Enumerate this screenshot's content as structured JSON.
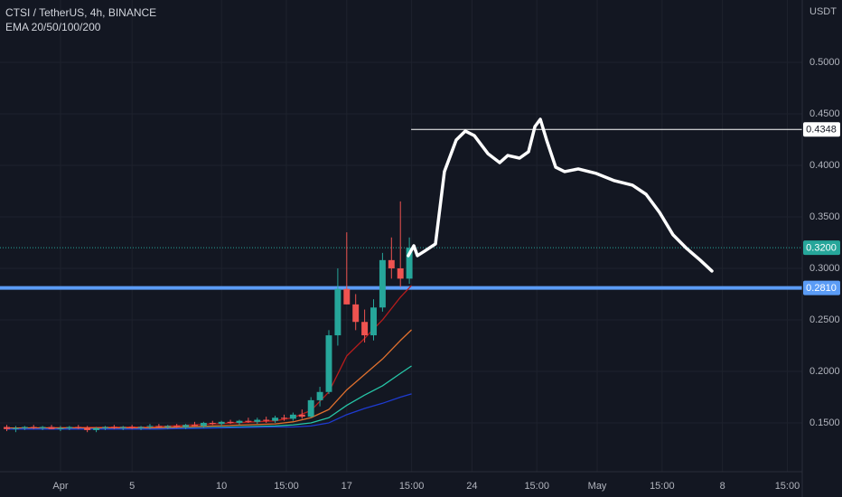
{
  "chart_data": {
    "type": "candlestick",
    "title": "CTSI / TetherUS, 4h, BINANCE",
    "subtitle": "EMA 20/50/100/200",
    "y_axis_label": "USDT",
    "grid": true,
    "up_color": "#26a69a",
    "down_color": "#ef5350",
    "xlim": [
      -3.38,
      41.46
    ],
    "ylim": [
      0.1026,
      0.5605
    ],
    "xticks": [
      {
        "value": 0,
        "label": "Apr"
      },
      {
        "value": 4,
        "label": "5"
      },
      {
        "value": 9,
        "label": "10"
      },
      {
        "value": 12.625,
        "label": "15:00"
      },
      {
        "value": 16,
        "label": "17"
      },
      {
        "value": 19.625,
        "label": "15:00"
      },
      {
        "value": 23,
        "label": "24"
      },
      {
        "value": 26.625,
        "label": "15:00"
      },
      {
        "value": 30,
        "label": "May"
      },
      {
        "value": 33.625,
        "label": "15:00"
      },
      {
        "value": 37,
        "label": "8"
      },
      {
        "value": 40.625,
        "label": "15:00"
      }
    ],
    "yticks": [
      {
        "value": 0.15,
        "label": "0.1500"
      },
      {
        "value": 0.2,
        "label": "0.2000"
      },
      {
        "value": 0.25,
        "label": "0.2500"
      },
      {
        "value": 0.3,
        "label": "0.3000"
      },
      {
        "value": 0.35,
        "label": "0.3500"
      },
      {
        "value": 0.4,
        "label": "0.4000"
      },
      {
        "value": 0.45,
        "label": "0.4500"
      },
      {
        "value": 0.5,
        "label": "0.5000"
      }
    ],
    "candles": {
      "x": [
        -3,
        -2.5,
        -2,
        -1.5,
        -1,
        -0.5,
        0,
        0.5,
        1,
        1.5,
        2,
        2.5,
        3,
        3.5,
        4,
        4.5,
        5,
        5.5,
        6,
        6.5,
        7,
        7.5,
        8,
        8.5,
        9,
        9.5,
        10,
        10.5,
        11,
        11.5,
        12,
        12.5,
        13,
        13.5,
        14,
        14.5,
        15,
        15.5,
        16,
        16.5,
        17,
        17.5,
        18,
        18.5,
        19,
        19.5
      ],
      "open": [
        0.146,
        0.144,
        0.145,
        0.146,
        0.145,
        0.146,
        0.144,
        0.145,
        0.146,
        0.145,
        0.143,
        0.145,
        0.146,
        0.145,
        0.146,
        0.145,
        0.146,
        0.147,
        0.146,
        0.147,
        0.146,
        0.148,
        0.147,
        0.15,
        0.149,
        0.151,
        0.15,
        0.152,
        0.151,
        0.153,
        0.152,
        0.155,
        0.154,
        0.158,
        0.156,
        0.172,
        0.18,
        0.235,
        0.28,
        0.265,
        0.248,
        0.235,
        0.262,
        0.308,
        0.3,
        0.29
      ],
      "high": [
        0.148,
        0.147,
        0.147,
        0.148,
        0.147,
        0.148,
        0.147,
        0.147,
        0.148,
        0.147,
        0.146,
        0.147,
        0.148,
        0.147,
        0.148,
        0.147,
        0.149,
        0.149,
        0.148,
        0.149,
        0.149,
        0.151,
        0.151,
        0.152,
        0.152,
        0.153,
        0.153,
        0.155,
        0.155,
        0.156,
        0.157,
        0.158,
        0.16,
        0.163,
        0.175,
        0.185,
        0.24,
        0.3,
        0.335,
        0.275,
        0.26,
        0.27,
        0.315,
        0.33,
        0.365,
        0.33
      ],
      "low": [
        0.142,
        0.141,
        0.143,
        0.144,
        0.143,
        0.144,
        0.142,
        0.143,
        0.144,
        0.141,
        0.141,
        0.143,
        0.144,
        0.143,
        0.144,
        0.143,
        0.144,
        0.145,
        0.144,
        0.145,
        0.144,
        0.146,
        0.145,
        0.148,
        0.147,
        0.149,
        0.148,
        0.15,
        0.149,
        0.15,
        0.15,
        0.152,
        0.152,
        0.154,
        0.155,
        0.166,
        0.178,
        0.225,
        0.265,
        0.24,
        0.228,
        0.23,
        0.258,
        0.29,
        0.282,
        0.285
      ],
      "close": [
        0.144,
        0.145,
        0.146,
        0.145,
        0.146,
        0.144,
        0.145,
        0.146,
        0.145,
        0.143,
        0.145,
        0.146,
        0.145,
        0.146,
        0.145,
        0.146,
        0.147,
        0.146,
        0.147,
        0.146,
        0.148,
        0.147,
        0.15,
        0.149,
        0.151,
        0.15,
        0.152,
        0.151,
        0.153,
        0.152,
        0.155,
        0.154,
        0.158,
        0.156,
        0.172,
        0.18,
        0.235,
        0.28,
        0.265,
        0.248,
        0.235,
        0.262,
        0.308,
        0.3,
        0.29,
        0.32
      ]
    },
    "ema": {
      "x": [
        -3,
        5,
        12,
        13,
        14,
        15,
        16,
        17,
        18,
        19,
        19.6
      ],
      "series": [
        {
          "name": "EMA 20",
          "color": "#b71c1c",
          "values": [
            0.145,
            0.146,
            0.152,
            0.155,
            0.162,
            0.18,
            0.215,
            0.232,
            0.25,
            0.272,
            0.283
          ]
        },
        {
          "name": "EMA 50",
          "color": "#e0702e",
          "values": [
            0.145,
            0.145,
            0.149,
            0.151,
            0.155,
            0.163,
            0.182,
            0.197,
            0.212,
            0.23,
            0.24
          ]
        },
        {
          "name": "EMA 100",
          "color": "#26c6a8",
          "values": [
            0.144,
            0.144,
            0.147,
            0.148,
            0.15,
            0.155,
            0.167,
            0.177,
            0.186,
            0.198,
            0.205
          ]
        },
        {
          "name": "EMA 200",
          "color": "#1e3bd1",
          "values": [
            0.144,
            0.144,
            0.146,
            0.146,
            0.147,
            0.15,
            0.158,
            0.164,
            0.169,
            0.175,
            0.178
          ]
        }
      ]
    },
    "projection": {
      "color": "#ffffff",
      "x": [
        19.44,
        19.75,
        19.95,
        20.35,
        20.96,
        21.46,
        22.12,
        22.63,
        23.13,
        23.89,
        24.55,
        25.0,
        25.66,
        26.16,
        26.52,
        26.82,
        27.17,
        27.68,
        28.18,
        28.94,
        29.95,
        30.96,
        31.97,
        32.73,
        33.48,
        34.24,
        35.0,
        35.76,
        36.41
      ],
      "y": [
        0.3123,
        0.3219,
        0.3123,
        0.3167,
        0.3237,
        0.3939,
        0.4246,
        0.4333,
        0.4289,
        0.4114,
        0.4026,
        0.4096,
        0.407,
        0.4132,
        0.4377,
        0.4447,
        0.4246,
        0.3982,
        0.3939,
        0.3965,
        0.3921,
        0.3851,
        0.3807,
        0.3719,
        0.3544,
        0.3325,
        0.3193,
        0.3079,
        0.2974
      ]
    },
    "levels": [
      {
        "value": 0.4348,
        "label": "0.4348",
        "color": "#ffffff",
        "start": 19.6,
        "label_color": "#ffffff",
        "text_color": "#131722"
      },
      {
        "value": 0.32,
        "label": "0.3200",
        "color": "#26a69a",
        "start": -3.38,
        "label_color": "#26a69a",
        "text_color": "#ffffff"
      },
      {
        "value": 0.281,
        "label": "0.2810",
        "color": "#5b9cf6",
        "start": -3.38,
        "label_color": "#5b9cf6",
        "text_color": "#ffffff"
      }
    ]
  }
}
